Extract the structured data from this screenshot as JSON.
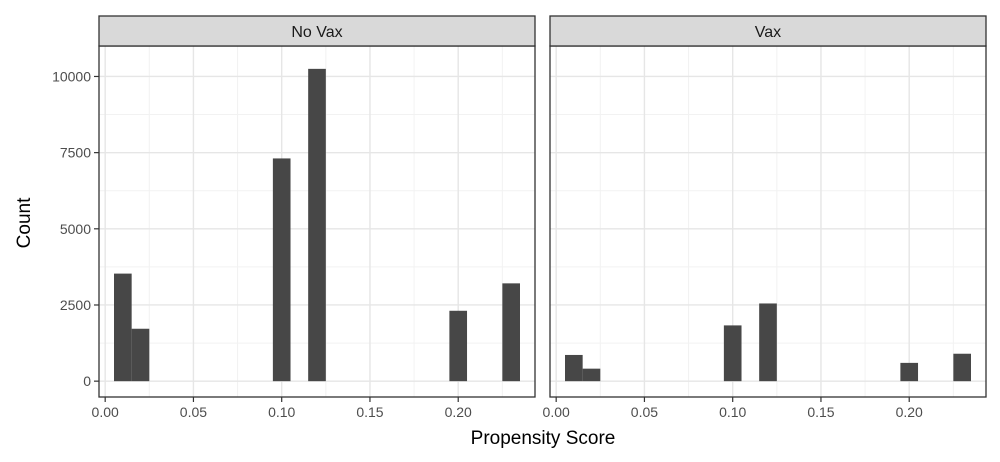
{
  "chart_data": {
    "type": "bar",
    "xlabel": "Propensity Score",
    "ylabel": "Count",
    "xlim": [
      -0.0035,
      0.2435
    ],
    "ylim": [
      -520,
      11000
    ],
    "x_ticks": [
      0.0,
      0.05,
      0.1,
      0.15,
      0.2
    ],
    "x_tick_labels": [
      "0.00",
      "0.05",
      "0.10",
      "0.15",
      "0.20"
    ],
    "y_ticks": [
      0,
      2500,
      5000,
      7500,
      10000
    ],
    "y_tick_labels": [
      "0",
      "2500",
      "5000",
      "7500",
      "10000"
    ],
    "bin_width": 0.01,
    "grid": true,
    "bar_color": "#474747",
    "panels": [
      {
        "name": "No Vax",
        "bins": [
          {
            "x0": 0.005,
            "x1": 0.015,
            "count": 3530
          },
          {
            "x0": 0.015,
            "x1": 0.025,
            "count": 1720
          },
          {
            "x0": 0.095,
            "x1": 0.105,
            "count": 7310
          },
          {
            "x0": 0.115,
            "x1": 0.125,
            "count": 10250
          },
          {
            "x0": 0.195,
            "x1": 0.205,
            "count": 2310
          },
          {
            "x0": 0.225,
            "x1": 0.235,
            "count": 3210
          }
        ]
      },
      {
        "name": "Vax",
        "bins": [
          {
            "x0": 0.005,
            "x1": 0.015,
            "count": 860
          },
          {
            "x0": 0.015,
            "x1": 0.025,
            "count": 410
          },
          {
            "x0": 0.095,
            "x1": 0.105,
            "count": 1830
          },
          {
            "x0": 0.115,
            "x1": 0.125,
            "count": 2550
          },
          {
            "x0": 0.195,
            "x1": 0.205,
            "count": 600
          },
          {
            "x0": 0.225,
            "x1": 0.235,
            "count": 900
          }
        ]
      }
    ]
  }
}
